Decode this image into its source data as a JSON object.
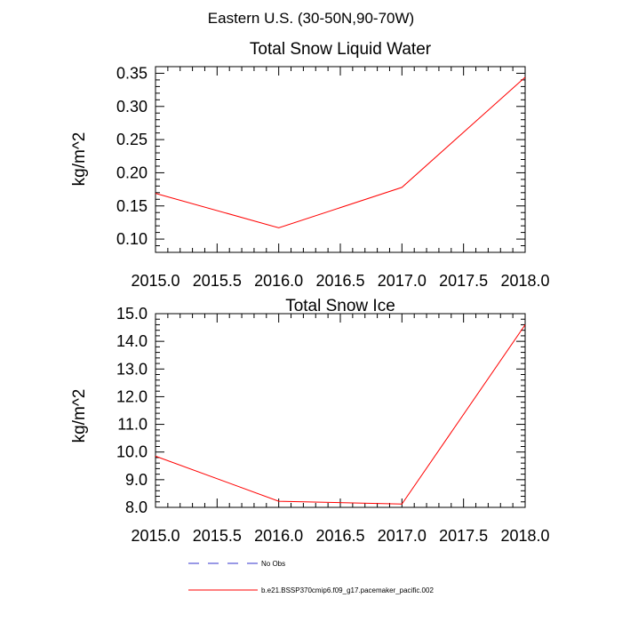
{
  "figure": {
    "main_title": "Eastern U.S. (30-50N,90-70W)"
  },
  "chart_data": [
    {
      "type": "line",
      "title": "Total Snow Liquid Water",
      "xlabel": "",
      "ylabel": "kg/m^2",
      "xlim": [
        2015.0,
        2018.0
      ],
      "ylim": [
        0.08,
        0.36
      ],
      "x_ticks": [
        2015.0,
        2015.5,
        2016.0,
        2016.5,
        2017.0,
        2017.5,
        2018.0
      ],
      "x_tick_labels": [
        "2015.0",
        "2015.5",
        "2016.0",
        "2016.5",
        "2017.0",
        "2017.5",
        "2018.0"
      ],
      "y_ticks": [
        0.1,
        0.15,
        0.2,
        0.25,
        0.3,
        0.35
      ],
      "y_tick_labels": [
        "0.10",
        "0.15",
        "0.20",
        "0.25",
        "0.30",
        "0.35"
      ],
      "x_minor_step": 0.1,
      "y_minor_step": 0.01,
      "grid": false,
      "series": [
        {
          "name": "b.e21.BSSP370cmip6.f09_g17.pacemaker_pacific.002",
          "color": "#ff0000",
          "x": [
            2015.0,
            2016.0,
            2017.0,
            2018.0
          ],
          "y": [
            0.169,
            0.117,
            0.178,
            0.344
          ]
        }
      ]
    },
    {
      "type": "line",
      "title": "Total Snow Ice",
      "xlabel": "",
      "ylabel": "kg/m^2",
      "xlim": [
        2015.0,
        2018.0
      ],
      "ylim": [
        8.0,
        15.0
      ],
      "x_ticks": [
        2015.0,
        2015.5,
        2016.0,
        2016.5,
        2017.0,
        2017.5,
        2018.0
      ],
      "x_tick_labels": [
        "2015.0",
        "2015.5",
        "2016.0",
        "2016.5",
        "2017.0",
        "2017.5",
        "2018.0"
      ],
      "y_ticks": [
        8.0,
        9.0,
        10.0,
        11.0,
        12.0,
        13.0,
        14.0,
        15.0
      ],
      "y_tick_labels": [
        "8.0",
        "9.0",
        "10.0",
        "11.0",
        "12.0",
        "13.0",
        "14.0",
        "15.0"
      ],
      "x_minor_step": 0.1,
      "y_minor_step": 0.2,
      "grid": false,
      "series": [
        {
          "name": "b.e21.BSSP370cmip6.f09_g17.pacemaker_pacific.002",
          "color": "#ff0000",
          "x": [
            2015.0,
            2016.0,
            2017.0,
            2018.0
          ],
          "y": [
            9.85,
            8.22,
            8.12,
            14.6
          ]
        }
      ]
    }
  ],
  "legend": {
    "placement": "bottom",
    "items": [
      {
        "label": "No Obs",
        "color": "#3333cc",
        "style": "dashed"
      },
      {
        "label": "b.e21.BSSP370cmip6.f09_g17.pacemaker_pacific.002",
        "color": "#ff0000",
        "style": "solid"
      }
    ]
  }
}
